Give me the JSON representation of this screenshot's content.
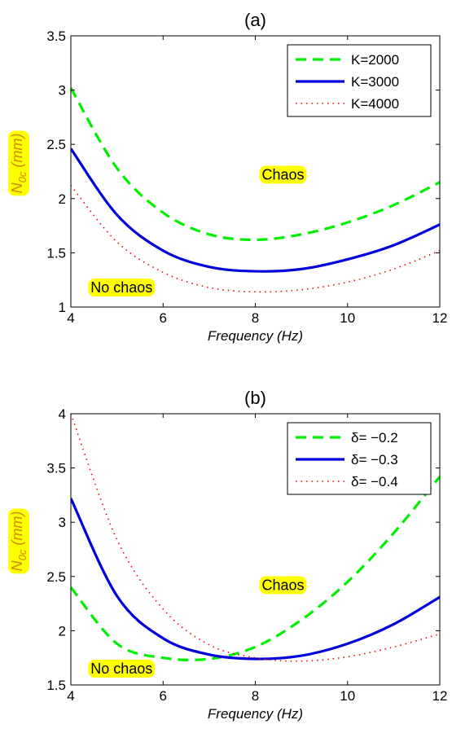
{
  "colors": {
    "green": "#00ee00",
    "blue": "#0000dd",
    "red": "#ee0000",
    "highlight": "#ffff00",
    "ylabel": "#c88a00"
  },
  "chart_data": [
    {
      "type": "line",
      "title": "(a)",
      "xlabel": "Frequency (Hz)",
      "ylabel": {
        "main": "N",
        "sub": "0c",
        "unit": "(mm)"
      },
      "xlim": [
        4,
        12
      ],
      "ylim": [
        1,
        3.5
      ],
      "xticks": [
        "4",
        "6",
        "8",
        "10",
        "12"
      ],
      "yticks": [
        "1",
        "1.5",
        "2",
        "2.5",
        "3",
        "3.5"
      ],
      "legend": {
        "position": "top-right"
      },
      "annotations": [
        {
          "text": "Chaos",
          "x": 8.6,
          "y": 2.22
        },
        {
          "text": "No chaos",
          "x": 5.1,
          "y": 1.18
        }
      ],
      "x": [
        4,
        5,
        6,
        7,
        8,
        9,
        10,
        11,
        12
      ],
      "series": [
        {
          "name": "K=2000",
          "style": "dashed",
          "color": "green",
          "values": [
            3.02,
            2.28,
            1.87,
            1.67,
            1.62,
            1.67,
            1.78,
            1.94,
            2.15
          ]
        },
        {
          "name": "K=3000",
          "style": "solid",
          "color": "blue",
          "values": [
            2.46,
            1.85,
            1.52,
            1.37,
            1.33,
            1.35,
            1.44,
            1.57,
            1.76
          ]
        },
        {
          "name": "K=4000",
          "style": "dotted",
          "color": "red",
          "values": [
            2.12,
            1.6,
            1.32,
            1.18,
            1.14,
            1.16,
            1.23,
            1.35,
            1.52
          ]
        }
      ]
    },
    {
      "type": "line",
      "title": "(b)",
      "xlabel": "Frequency (Hz)",
      "ylabel": {
        "main": "N",
        "sub": "0c",
        "unit": "(mm)"
      },
      "xlim": [
        4,
        12
      ],
      "ylim": [
        1.5,
        4
      ],
      "xticks": [
        "4",
        "6",
        "8",
        "10",
        "12"
      ],
      "yticks": [
        "1.5",
        "2",
        "2.5",
        "3",
        "3.5",
        "4"
      ],
      "legend": {
        "position": "top-right"
      },
      "annotations": [
        {
          "text": "Chaos",
          "x": 8.6,
          "y": 2.42
        },
        {
          "text": "No chaos",
          "x": 5.1,
          "y": 1.65
        }
      ],
      "x": [
        4,
        5,
        6,
        7,
        8,
        9,
        10,
        11,
        12
      ],
      "series": [
        {
          "name": "δ= −0.2",
          "style": "dashed",
          "color": "green",
          "values": [
            2.4,
            1.88,
            1.75,
            1.74,
            1.85,
            2.1,
            2.45,
            2.9,
            3.42
          ]
        },
        {
          "name": "δ= −0.3",
          "style": "solid",
          "color": "blue",
          "values": [
            3.22,
            2.32,
            1.93,
            1.78,
            1.74,
            1.77,
            1.88,
            2.06,
            2.31
          ]
        },
        {
          "name": "δ= −0.4",
          "style": "dotted",
          "color": "red",
          "values": [
            4.0,
            2.84,
            2.2,
            1.87,
            1.75,
            1.72,
            1.76,
            1.85,
            1.97
          ]
        }
      ]
    }
  ]
}
